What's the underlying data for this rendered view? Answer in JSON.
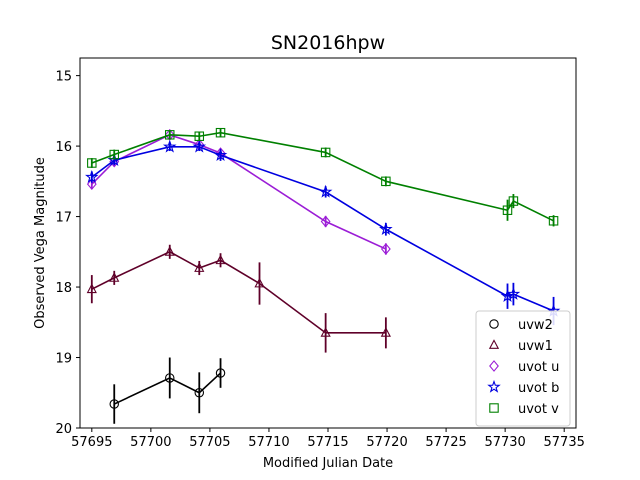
{
  "chart_data": {
    "type": "scatter",
    "title": "SN2016hpw",
    "xlabel": "Modified Julian Date",
    "ylabel": "Observed Vega Magnitude",
    "xlim": [
      57694,
      57736
    ],
    "ylim": [
      20,
      14.75
    ],
    "y_inverted": true,
    "grid": false,
    "legend_position": "lower-right",
    "xticks": [
      57695,
      57700,
      57705,
      57710,
      57715,
      57720,
      57725,
      57730,
      57735
    ],
    "yticks": [
      15,
      16,
      17,
      18,
      19,
      20
    ],
    "series": [
      {
        "name": "uvw2",
        "marker": "circle",
        "color": "#000000",
        "x": [
          57696.9,
          57701.6,
          57704.1,
          57705.9
        ],
        "y": [
          19.66,
          19.29,
          19.5,
          19.22
        ],
        "yerr": [
          0.28,
          0.29,
          0.29,
          0.21
        ]
      },
      {
        "name": "uvw1",
        "marker": "triangle",
        "color": "#5f0029",
        "x": [
          57695.0,
          57696.9,
          57701.6,
          57704.1,
          57705.9,
          57709.2,
          57714.8,
          57719.9
        ],
        "y": [
          18.03,
          17.87,
          17.5,
          17.73,
          17.62,
          17.95,
          18.65,
          18.65
        ],
        "yerr": [
          0.2,
          0.1,
          0.1,
          0.1,
          0.1,
          0.3,
          0.28,
          0.22
        ]
      },
      {
        "name": "uvot u",
        "marker": "diamond",
        "color": "#9b1dd6",
        "x": [
          57695.0,
          57696.9,
          57701.6,
          57704.1,
          57705.9,
          57714.8,
          57719.9
        ],
        "y": [
          16.54,
          16.22,
          15.84,
          15.98,
          16.1,
          17.07,
          17.46
        ],
        "yerr": [
          0.07,
          0.07,
          0.06,
          0.06,
          0.06,
          0.08,
          0.08
        ]
      },
      {
        "name": "uvot b",
        "marker": "star",
        "color": "#0000e0",
        "x": [
          57695.0,
          57696.9,
          57701.6,
          57704.1,
          57705.9,
          57714.8,
          57719.9,
          57730.2,
          57730.7,
          57734.1
        ],
        "y": [
          16.44,
          16.2,
          16.01,
          16.01,
          16.13,
          16.65,
          17.18,
          18.13,
          18.1,
          18.34
        ],
        "yerr": [
          0.08,
          0.07,
          0.06,
          0.06,
          0.08,
          0.08,
          0.09,
          0.18,
          0.16,
          0.2
        ]
      },
      {
        "name": "uvot v",
        "marker": "square",
        "color": "#008000",
        "x": [
          57695.0,
          57696.9,
          57701.6,
          57704.1,
          57705.9,
          57714.8,
          57719.9,
          57730.2,
          57730.7,
          57734.1
        ],
        "y": [
          16.24,
          16.12,
          15.84,
          15.86,
          15.81,
          16.09,
          16.5,
          16.91,
          16.78,
          17.06
        ],
        "yerr": [
          0.07,
          0.07,
          0.06,
          0.06,
          0.06,
          0.07,
          0.07,
          0.15,
          0.1,
          0.08
        ]
      }
    ]
  }
}
